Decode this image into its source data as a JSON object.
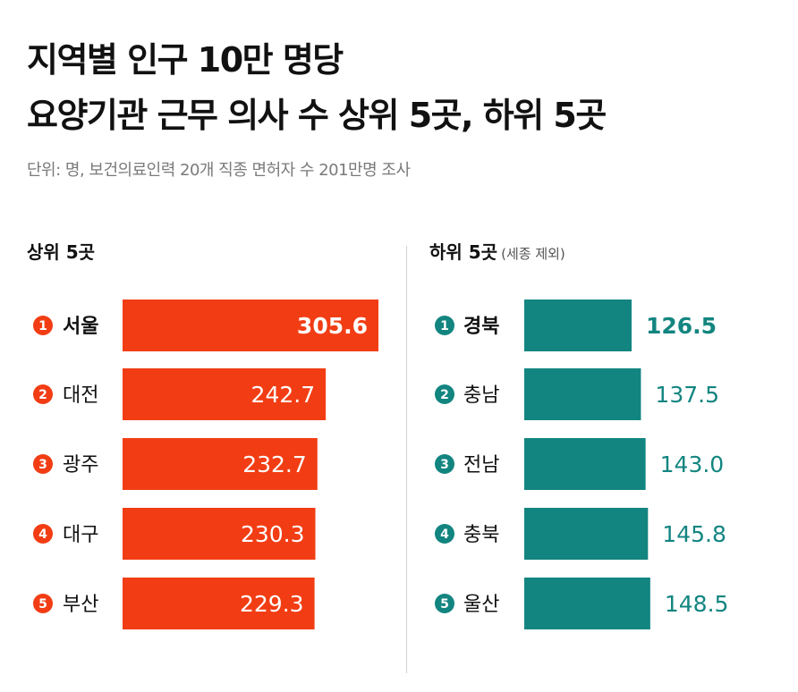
{
  "title_line1": "지역별 인구 10만 명당",
  "title_line2": "요양기관 근무 의사 수 상위 5곳, 하위 5곳",
  "subtitle": "단위: 명, 보건의료인력 20개 직종 면허자 수 201만명 조사",
  "colors": {
    "top": "#f23d14",
    "bottom": "#138580",
    "label_text": "#111111",
    "value_on_bar": "#ffffff"
  },
  "chart_data": [
    {
      "type": "bar",
      "orientation": "horizontal",
      "title": "상위 5곳",
      "subtitle": "",
      "ranks": [
        "1",
        "2",
        "3",
        "4",
        "5"
      ],
      "categories": [
        "서울",
        "대전",
        "광주",
        "대구",
        "부산"
      ],
      "values": [
        305.6,
        242.7,
        232.7,
        230.3,
        229.3
      ],
      "value_labels": [
        "305.6",
        "242.7",
        "232.7",
        "230.3",
        "229.3"
      ],
      "xlim": [
        0,
        305.6
      ],
      "value_label_position": "inside-end"
    },
    {
      "type": "bar",
      "orientation": "horizontal",
      "title": "하위 5곳",
      "subtitle": "(세종 제외)",
      "ranks": [
        "1",
        "2",
        "3",
        "4",
        "5"
      ],
      "categories": [
        "경북",
        "충남",
        "전남",
        "충북",
        "울산"
      ],
      "values": [
        126.5,
        137.5,
        143.0,
        145.8,
        148.5
      ],
      "value_labels": [
        "126.5",
        "137.5",
        "143.0",
        "145.8",
        "148.5"
      ],
      "xlim": [
        0,
        305.6
      ],
      "value_label_position": "outside-end"
    }
  ]
}
